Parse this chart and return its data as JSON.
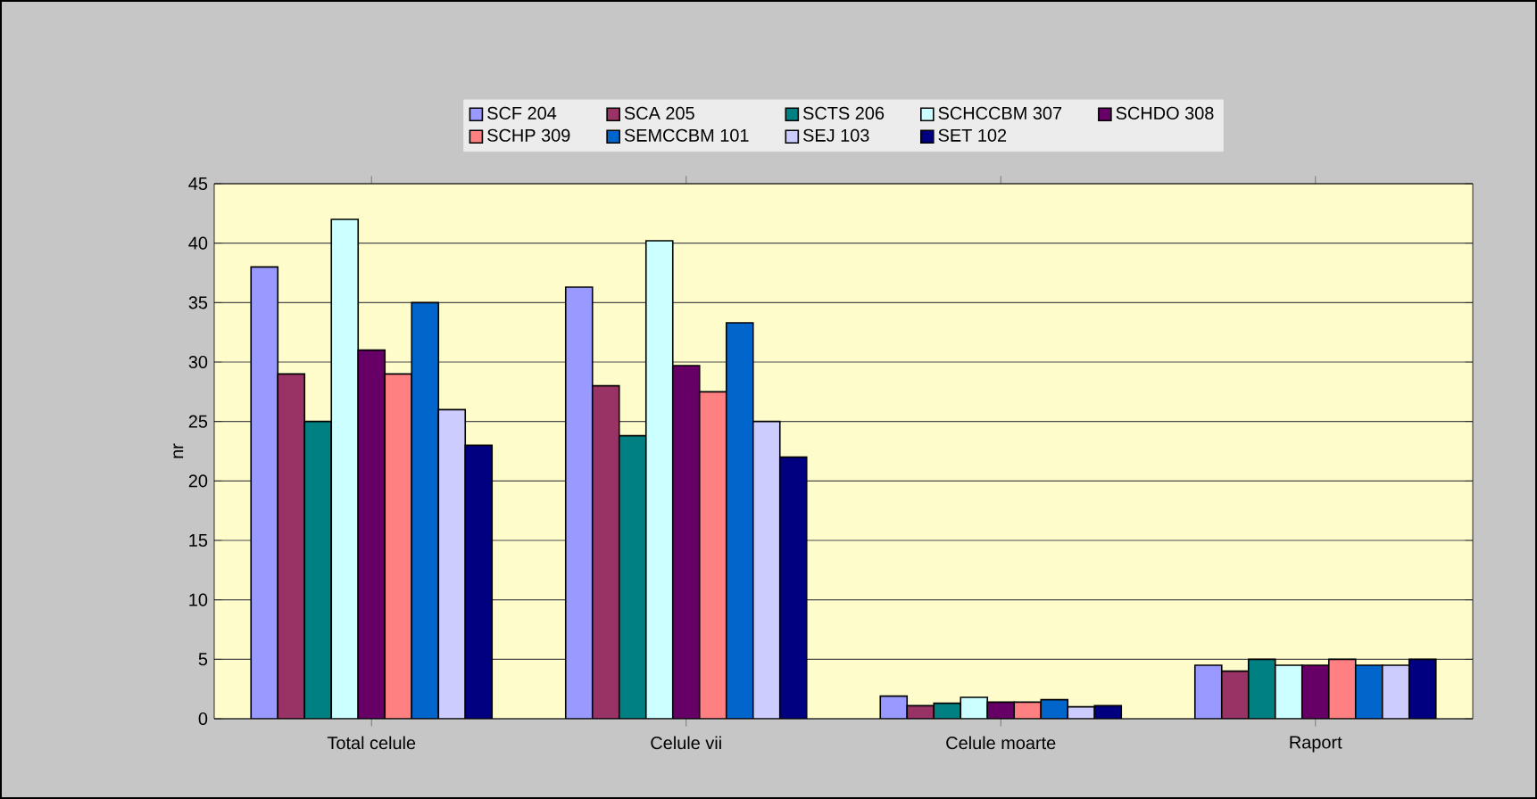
{
  "chart_data": {
    "type": "bar",
    "ylabel": "nr",
    "categories": [
      "Total celule",
      "Celule vii",
      "Celule moarte",
      "Raport"
    ],
    "ylim": [
      0,
      45
    ],
    "yticks": [
      0,
      5,
      10,
      15,
      20,
      25,
      30,
      35,
      40,
      45
    ],
    "grid": "y",
    "legend": "top",
    "series": [
      {
        "name": "SCF 204",
        "color": "#9999ff",
        "values": [
          38,
          36.3,
          1.9,
          4.5
        ]
      },
      {
        "name": "SCA  205",
        "color": "#993366",
        "values": [
          29,
          28,
          1.1,
          4
        ]
      },
      {
        "name": "SCTS 206",
        "color": "#008080",
        "values": [
          25,
          23.8,
          1.3,
          5
        ]
      },
      {
        "name": "SCHCCBM 307",
        "color": "#ccffff",
        "values": [
          42,
          40.2,
          1.8,
          4.5
        ]
      },
      {
        "name": "SCHDO 308",
        "color": "#660066",
        "values": [
          31,
          29.7,
          1.4,
          4.5
        ]
      },
      {
        "name": "SCHP 309",
        "color": "#ff8080",
        "values": [
          29,
          27.5,
          1.4,
          5
        ]
      },
      {
        "name": "SEMCCBM 101",
        "color": "#0066cc",
        "values": [
          35,
          33.3,
          1.6,
          4.5
        ]
      },
      {
        "name": "SEJ 103",
        "color": "#ccccff",
        "values": [
          26,
          25,
          1,
          4.5
        ]
      },
      {
        "name": "SET 102",
        "color": "#000080",
        "values": [
          23,
          22,
          1.1,
          5
        ]
      }
    ]
  }
}
